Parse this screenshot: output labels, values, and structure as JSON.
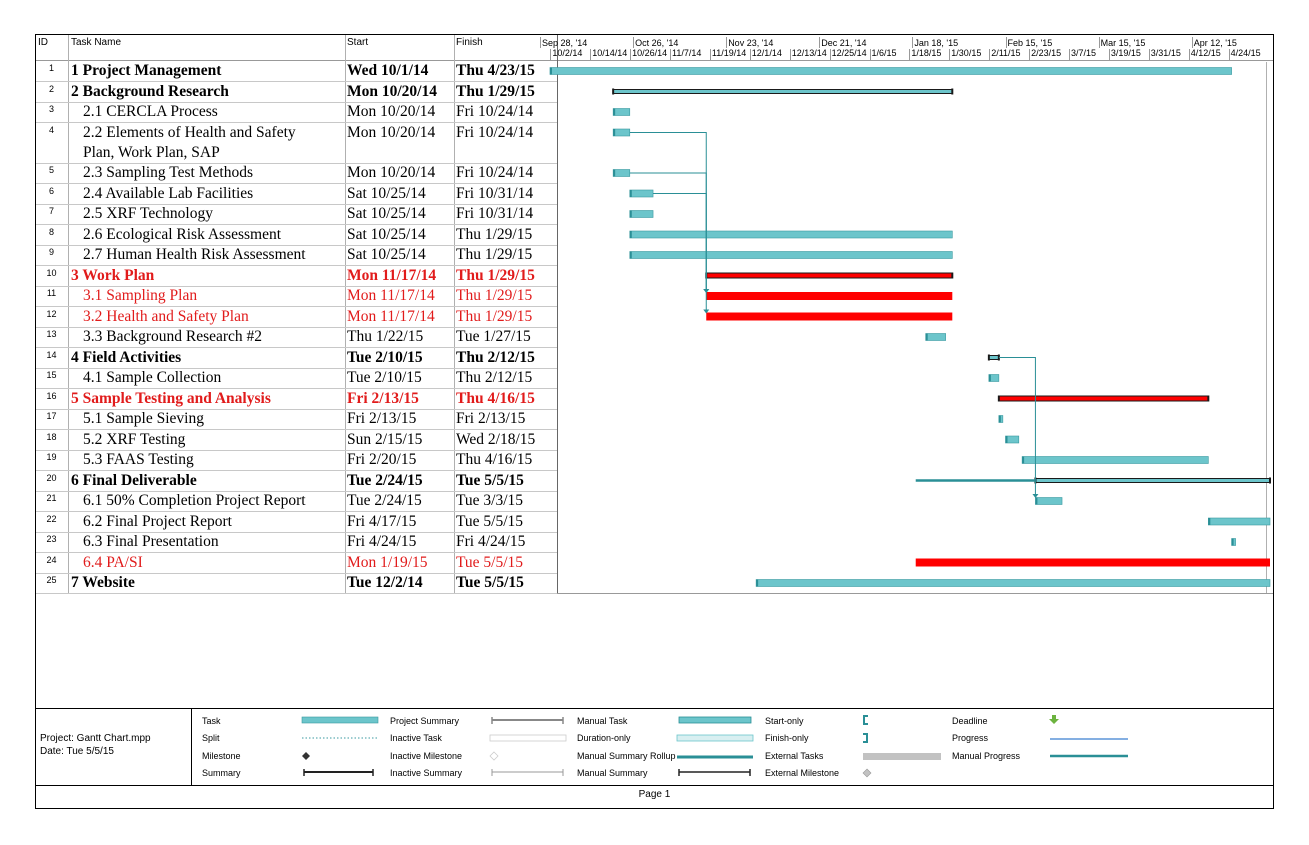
{
  "columns": {
    "id": "ID",
    "name": "Task Name",
    "start": "Start",
    "finish": "Finish"
  },
  "timescale": {
    "top": [
      "Sep 28, '14",
      "Oct 26, '14",
      "Nov 23, '14",
      "Dec 21, '14",
      "Jan 18, '15",
      "Feb 15, '15",
      "Mar 15, '15",
      "Apr 12, '15"
    ],
    "bottom": [
      "10/2/14",
      "10/14/14",
      "10/26/14",
      "11/7/14",
      "11/19/14",
      "12/1/14",
      "12/13/14",
      "12/25/14",
      "1/6/15",
      "1/18/15",
      "1/30/15",
      "2/11/15",
      "2/23/15",
      "3/7/15",
      "3/19/15",
      "3/31/15",
      "4/12/15",
      "4/24/15"
    ]
  },
  "tasks": [
    {
      "id": "1",
      "name": "1 Project Management",
      "start": "Wed 10/1/14",
      "finish": "Thu 4/23/15",
      "bold": true,
      "red": false,
      "indent": 0
    },
    {
      "id": "2",
      "name": "2 Background Research",
      "start": "Mon 10/20/14",
      "finish": "Thu 1/29/15",
      "bold": true,
      "red": false,
      "indent": 0
    },
    {
      "id": "3",
      "name": "2.1 CERCLA Process",
      "start": "Mon 10/20/14",
      "finish": "Fri 10/24/14",
      "bold": false,
      "red": false,
      "indent": 1
    },
    {
      "id": "4",
      "name": "2.2 Elements of Health and Safety",
      "name2": "Plan, Work Plan, SAP",
      "start": "Mon 10/20/14",
      "finish": "Fri 10/24/14",
      "bold": false,
      "red": false,
      "indent": 1
    },
    {
      "id": "5",
      "name": "2.3 Sampling Test Methods",
      "start": "Mon 10/20/14",
      "finish": "Fri 10/24/14",
      "bold": false,
      "red": false,
      "indent": 1
    },
    {
      "id": "6",
      "name": "2.4 Available Lab Facilities",
      "start": "Sat 10/25/14",
      "finish": "Fri 10/31/14",
      "bold": false,
      "red": false,
      "indent": 1
    },
    {
      "id": "7",
      "name": "2.5 XRF Technology",
      "start": "Sat 10/25/14",
      "finish": "Fri 10/31/14",
      "bold": false,
      "red": false,
      "indent": 1
    },
    {
      "id": "8",
      "name": "2.6 Ecological Risk Assessment",
      "start": "Sat 10/25/14",
      "finish": "Thu 1/29/15",
      "bold": false,
      "red": false,
      "indent": 1
    },
    {
      "id": "9",
      "name": "2.7 Human Health Risk Assessment",
      "start": "Sat 10/25/14",
      "finish": "Thu 1/29/15",
      "bold": false,
      "red": false,
      "indent": 1
    },
    {
      "id": "10",
      "name": "3 Work Plan",
      "start": "Mon 11/17/14",
      "finish": "Thu 1/29/15",
      "bold": true,
      "red": true,
      "indent": 0
    },
    {
      "id": "11",
      "name": "3.1 Sampling Plan",
      "start": "Mon 11/17/14",
      "finish": "Thu 1/29/15",
      "bold": false,
      "red": true,
      "indent": 1
    },
    {
      "id": "12",
      "name": "3.2 Health and Safety Plan",
      "start": "Mon 11/17/14",
      "finish": "Thu 1/29/15",
      "bold": false,
      "red": true,
      "indent": 1
    },
    {
      "id": "13",
      "name": "3.3 Background Research #2",
      "start": "Thu 1/22/15",
      "finish": "Tue 1/27/15",
      "bold": false,
      "red": false,
      "indent": 1
    },
    {
      "id": "14",
      "name": "4 Field Activities",
      "start": "Tue 2/10/15",
      "finish": "Thu 2/12/15",
      "bold": true,
      "red": false,
      "indent": 0
    },
    {
      "id": "15",
      "name": "4.1 Sample Collection",
      "start": "Tue 2/10/15",
      "finish": "Thu 2/12/15",
      "bold": false,
      "red": false,
      "indent": 1
    },
    {
      "id": "16",
      "name": "5 Sample Testing and Analysis",
      "start": "Fri 2/13/15",
      "finish": "Thu 4/16/15",
      "bold": true,
      "red": true,
      "indent": 0
    },
    {
      "id": "17",
      "name": "5.1 Sample Sieving",
      "start": "Fri 2/13/15",
      "finish": "Fri 2/13/15",
      "bold": false,
      "red": false,
      "indent": 1
    },
    {
      "id": "18",
      "name": "5.2 XRF Testing",
      "start": "Sun 2/15/15",
      "finish": "Wed 2/18/15",
      "bold": false,
      "red": false,
      "indent": 1
    },
    {
      "id": "19",
      "name": "5.3 FAAS Testing",
      "start": "Fri 2/20/15",
      "finish": "Thu 4/16/15",
      "bold": false,
      "red": false,
      "indent": 1
    },
    {
      "id": "20",
      "name": "6 Final Deliverable",
      "start": "Tue 2/24/15",
      "finish": "Tue 5/5/15",
      "bold": true,
      "red": false,
      "indent": 0
    },
    {
      "id": "21",
      "name": "6.1 50% Completion Project Report",
      "start": "Tue 2/24/15",
      "finish": "Tue 3/3/15",
      "bold": false,
      "red": false,
      "indent": 1
    },
    {
      "id": "22",
      "name": "6.2 Final Project Report",
      "start": "Fri 4/17/15",
      "finish": "Tue 5/5/15",
      "bold": false,
      "red": false,
      "indent": 1
    },
    {
      "id": "23",
      "name": "6.3 Final Presentation",
      "start": "Fri 4/24/15",
      "finish": "Fri 4/24/15",
      "bold": false,
      "red": false,
      "indent": 1
    },
    {
      "id": "24",
      "name": "6.4 PA/SI",
      "start": "Mon 1/19/15",
      "finish": "Tue 5/5/15",
      "bold": false,
      "red": true,
      "indent": 1
    },
    {
      "id": "25",
      "name": "7 Website",
      "start": "Tue 12/2/14",
      "finish": "Tue 5/5/15",
      "bold": true,
      "red": false,
      "indent": 0
    }
  ],
  "legend": {
    "project": "Project: Gantt Chart.mpp",
    "date": "Date: Tue 5/5/15",
    "items": {
      "task": "Task",
      "split": "Split",
      "milestone": "Milestone",
      "summary": "Summary",
      "project_summary": "Project Summary",
      "inactive_task": "Inactive Task",
      "inactive_milestone": "Inactive Milestone",
      "inactive_summary": "Inactive Summary",
      "manual_task": "Manual Task",
      "duration_only": "Duration-only",
      "manual_summary_rollup": "Manual Summary Rollup",
      "manual_summary": "Manual Summary",
      "start_only": "Start-only",
      "finish_only": "Finish-only",
      "external_tasks": "External Tasks",
      "external_milestone": "External Milestone",
      "deadline": "Deadline",
      "progress": "Progress",
      "manual_progress": "Manual Progress"
    }
  },
  "footer": "Page 1",
  "colors": {
    "task": "#6cc5cb",
    "task_edge": "#3a9aa0",
    "critical": "#ff0000",
    "summary": "#1a1a1a",
    "link": "#2a8f96",
    "red_text": "#e11b1b"
  }
}
